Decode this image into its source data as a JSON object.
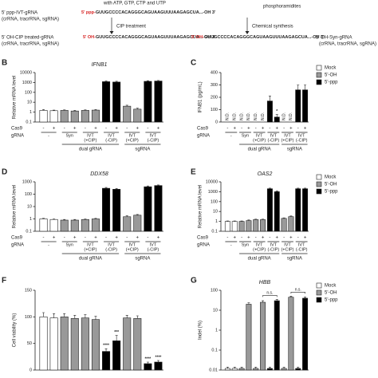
{
  "scheme": {
    "ivt_note": "with ATP, GTP, CTP and UTP",
    "ppp_label": "5' ppp-IVT-gRNA",
    "ppp_prefix": "5' ppp-",
    "seq": "GUUGCCCCACAGGGCAGUAAGUUUAAGAGCUA...-OH 3'",
    "cip": "CIP treatment",
    "oh_label": "5' OH-CIP treated-gRNA",
    "sub": "(crRNA, tracrRNA, sgRNA)",
    "oh_prefix": "5' OH-",
    "phos": "phosphoramidites",
    "chem": "Chemical synthesis",
    "syn_label": "5' OH-Syn-gRNA"
  },
  "chart_data": [
    {
      "type": "bar",
      "letter": "B",
      "title": "IFNB1",
      "ylabel": "Relative mRNA level",
      "log": true,
      "ylim": [
        0.1,
        10000
      ],
      "yticks": [
        0.1,
        1,
        10,
        100,
        1000,
        10000
      ],
      "values": [
        1.5,
        1.4,
        1.5,
        1.3,
        1.5,
        1.6,
        1200,
        1100,
        4,
        2,
        1300,
        1400
      ],
      "errors": [
        0.3,
        0.2,
        0.2,
        0.2,
        0.2,
        0.2,
        200,
        200,
        1,
        0.5,
        200,
        200
      ],
      "colors": [
        "#ffffff",
        "#ffffff",
        "#999999",
        "#999999",
        "#999999",
        "#999999",
        "#000000",
        "#000000",
        "#999999",
        "#999999",
        "#000000",
        "#000000"
      ],
      "cas9_label": "Cas9",
      "grna_label": "gRNA",
      "cas9": [
        "-",
        "+",
        "-",
        "+",
        "-",
        "+",
        "-",
        "+",
        "-",
        "+",
        "-",
        "+"
      ],
      "grna": [
        [
          "-"
        ],
        [
          "Syn"
        ],
        [
          "IVT",
          "(+CIP)"
        ],
        [
          "IVT",
          "(-CIP)"
        ],
        [
          "IVT",
          "(+CIP)"
        ],
        [
          "IVT",
          "(-CIP)"
        ]
      ],
      "groups": [
        {
          "name": "dual gRNA",
          "pairs": [
            1,
            3
          ]
        },
        {
          "name": "sgRNA",
          "pairs": [
            4,
            5
          ]
        }
      ]
    },
    {
      "type": "bar",
      "letter": "C",
      "ylabel": "IFNB1 (pg/mL)",
      "log": false,
      "ylim": [
        0,
        400
      ],
      "yticks": [
        0,
        100,
        200,
        300,
        400
      ],
      "nd_label": "N.D.",
      "values": [
        null,
        null,
        null,
        null,
        null,
        null,
        170,
        40,
        null,
        null,
        260,
        260
      ],
      "errors": [
        null,
        null,
        null,
        null,
        null,
        null,
        40,
        20,
        null,
        null,
        40,
        40
      ],
      "colors": [
        "#ffffff",
        "#ffffff",
        "#999999",
        "#999999",
        "#999999",
        "#999999",
        "#000000",
        "#000000",
        "#999999",
        "#999999",
        "#000000",
        "#000000"
      ],
      "annotations": [
        {
          "bar": 7,
          "text": "*"
        }
      ],
      "cas9_label": "Cas9",
      "grna_label": "gRNA",
      "cas9": [
        "-",
        "+",
        "-",
        "+",
        "-",
        "+",
        "-",
        "+",
        "-",
        "+",
        "-",
        "+"
      ],
      "grna": [
        [
          "-"
        ],
        [
          "Syn"
        ],
        [
          "IVT",
          "(+CIP)"
        ],
        [
          "IVT",
          "(-CIP)"
        ],
        [
          "IVT",
          "(+CIP)"
        ],
        [
          "IVT",
          "(-CIP)"
        ]
      ],
      "groups": [
        {
          "name": "dual gRNA",
          "pairs": [
            1,
            3
          ]
        },
        {
          "name": "sgRNA",
          "pairs": [
            4,
            5
          ]
        }
      ],
      "legend": [
        {
          "name": "Mock",
          "color": "#ffffff"
        },
        {
          "name": "5'-OH",
          "color": "#999999"
        },
        {
          "name": "5'-ppp",
          "color": "#000000"
        }
      ]
    },
    {
      "type": "bar",
      "letter": "D",
      "title": "DDX58",
      "ylabel": "Relative mRNA level",
      "log": true,
      "ylim": [
        0.1,
        1000
      ],
      "yticks": [
        0.1,
        1,
        10,
        100,
        1000
      ],
      "values": [
        1,
        0.9,
        0.8,
        0.8,
        0.9,
        1,
        300,
        250,
        1.5,
        2,
        400,
        500
      ],
      "errors": [
        0.1,
        0.1,
        0.1,
        0.1,
        0.1,
        0.1,
        50,
        40,
        0.3,
        0.3,
        60,
        60
      ],
      "colors": [
        "#ffffff",
        "#ffffff",
        "#999999",
        "#999999",
        "#999999",
        "#999999",
        "#000000",
        "#000000",
        "#999999",
        "#999999",
        "#000000",
        "#000000"
      ],
      "cas9_label": "Cas9",
      "grna_label": "gRNA",
      "cas9": [
        "-",
        "+",
        "-",
        "+",
        "-",
        "+",
        "-",
        "+",
        "-",
        "+",
        "-",
        "+"
      ],
      "grna": [
        [
          "-"
        ],
        [
          "Syn"
        ],
        [
          "IVT",
          "(+CIP)"
        ],
        [
          "IVT",
          "(-CIP)"
        ],
        [
          "IVT",
          "(+CIP)"
        ],
        [
          "IVT",
          "(-CIP)"
        ]
      ],
      "groups": [
        {
          "name": "dual gRNA",
          "pairs": [
            1,
            3
          ]
        },
        {
          "name": "sgRNA",
          "pairs": [
            4,
            5
          ]
        }
      ]
    },
    {
      "type": "bar",
      "letter": "E",
      "title": "OAS2",
      "ylabel": "Relative mRNA level",
      "log": true,
      "ylim": [
        0.1,
        10000
      ],
      "yticks": [
        0.1,
        1,
        10,
        100,
        1000,
        10000
      ],
      "values": [
        1,
        1,
        1,
        1.2,
        1.5,
        1.5,
        2000,
        1000,
        2,
        3,
        2000,
        2000
      ],
      "errors": [
        0.1,
        0.1,
        0.1,
        0.2,
        0.2,
        0.2,
        300,
        200,
        0.3,
        0.5,
        300,
        300
      ],
      "colors": [
        "#ffffff",
        "#ffffff",
        "#999999",
        "#999999",
        "#999999",
        "#999999",
        "#000000",
        "#000000",
        "#999999",
        "#999999",
        "#000000",
        "#000000"
      ],
      "cas9_label": "Cas9",
      "grna_label": "gRNA",
      "cas9": [
        "-",
        "+",
        "-",
        "+",
        "-",
        "+",
        "-",
        "+",
        "-",
        "+",
        "-",
        "+"
      ],
      "grna": [
        [
          "-"
        ],
        [
          "Syn"
        ],
        [
          "IVT",
          "(+CIP)"
        ],
        [
          "IVT",
          "(-CIP)"
        ],
        [
          "IVT",
          "(+CIP)"
        ],
        [
          "IVT",
          "(-CIP)"
        ]
      ],
      "groups": [
        {
          "name": "dual gRNA",
          "pairs": [
            1,
            3
          ]
        },
        {
          "name": "sgRNA",
          "pairs": [
            4,
            5
          ]
        }
      ],
      "legend": [
        {
          "name": "Mock",
          "color": "#ffffff"
        },
        {
          "name": "5'-OH",
          "color": "#999999"
        },
        {
          "name": "5'-ppp",
          "color": "#000000"
        }
      ]
    },
    {
      "type": "bar",
      "letter": "F",
      "ylabel": "Cell viability (%)",
      "log": false,
      "ylim": [
        0,
        150
      ],
      "yticks": [
        0,
        50,
        100,
        150
      ],
      "values": [
        100,
        98,
        100,
        97,
        98,
        95,
        35,
        55,
        98,
        97,
        12,
        15
      ],
      "errors": [
        8,
        8,
        6,
        6,
        6,
        6,
        5,
        10,
        5,
        5,
        3,
        3
      ],
      "colors": [
        "#ffffff",
        "#ffffff",
        "#999999",
        "#999999",
        "#999999",
        "#999999",
        "#000000",
        "#000000",
        "#999999",
        "#999999",
        "#000000",
        "#000000"
      ],
      "annotations": [
        {
          "bar": 6,
          "text": "****"
        },
        {
          "bar": 7,
          "text": "***"
        },
        {
          "bar": 10,
          "text": "****"
        },
        {
          "bar": 11,
          "text": "****"
        }
      ]
    },
    {
      "type": "bar",
      "letter": "G",
      "title": "HBB",
      "ylabel": "Indel (%)",
      "log": true,
      "ylim": [
        0.01,
        100
      ],
      "yticks": [
        0.01,
        0.1,
        1,
        10,
        100
      ],
      "values": [
        0.012,
        0.012,
        0.012,
        20,
        0.012,
        25,
        0.012,
        30,
        0.012,
        45,
        0.012,
        40
      ],
      "errors": [
        0.002,
        0.002,
        0.002,
        4,
        0.002,
        5,
        0.002,
        5,
        0.002,
        6,
        0.002,
        6
      ],
      "colors": [
        "#ffffff",
        "#ffffff",
        "#999999",
        "#999999",
        "#999999",
        "#999999",
        "#000000",
        "#000000",
        "#999999",
        "#999999",
        "#000000",
        "#000000"
      ],
      "brackets": [
        {
          "bars": [
            5,
            7
          ],
          "text": "n.s."
        },
        {
          "bars": [
            9,
            11
          ],
          "text": "n.s."
        }
      ],
      "legend": [
        {
          "name": "Mock",
          "color": "#ffffff"
        },
        {
          "name": "5'-OH",
          "color": "#999999"
        },
        {
          "name": "5'-ppp",
          "color": "#000000"
        }
      ]
    }
  ]
}
